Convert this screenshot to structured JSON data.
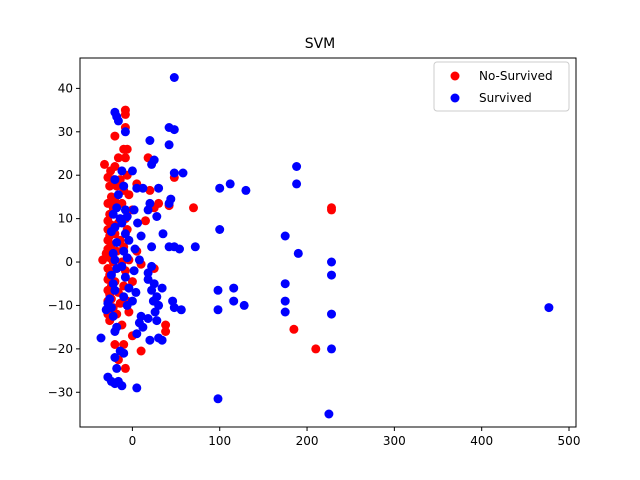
{
  "chart_data": {
    "type": "scatter",
    "title": "SVM",
    "xlabel": "",
    "ylabel": "",
    "xlim": [
      -60,
      508
    ],
    "ylim": [
      -38,
      47
    ],
    "xticks": [
      0,
      100,
      200,
      300,
      400,
      500
    ],
    "yticks": [
      -30,
      -20,
      -10,
      0,
      10,
      20,
      30,
      40
    ],
    "grid": false,
    "legend_position": "top-right",
    "series": [
      {
        "name": "No-Survived",
        "color": "#ff0000",
        "points": [
          [
            -32,
            22.5
          ],
          [
            -34,
            0.5
          ],
          [
            -30,
            2.0
          ],
          [
            -28,
            19.5
          ],
          [
            -28,
            13.5
          ],
          [
            -28,
            9.5
          ],
          [
            -28,
            7.5
          ],
          [
            -28,
            5.0
          ],
          [
            -28,
            3.0
          ],
          [
            -28,
            -1.5
          ],
          [
            -28,
            -4.0
          ],
          [
            -28,
            -6.5
          ],
          [
            -28,
            -9.0
          ],
          [
            -28,
            -12.0
          ],
          [
            -26,
            17.5
          ],
          [
            -26,
            11.0
          ],
          [
            -26,
            6.0
          ],
          [
            -26,
            1.0
          ],
          [
            -26,
            -3.0
          ],
          [
            -26,
            -7.5
          ],
          [
            -26,
            -13.5
          ],
          [
            -25,
            21.0
          ],
          [
            -24,
            15.0
          ],
          [
            -24,
            8.5
          ],
          [
            -24,
            4.0
          ],
          [
            -24,
            -2.5
          ],
          [
            -24,
            -5.5
          ],
          [
            -24,
            -8.5
          ],
          [
            -22,
            19.0
          ],
          [
            -22,
            12.5
          ],
          [
            -22,
            0.0
          ],
          [
            -22,
            -10.5
          ],
          [
            -20,
            29.0
          ],
          [
            -20,
            22.0
          ],
          [
            -20,
            14.0
          ],
          [
            -20,
            6.5
          ],
          [
            -20,
            -4.5
          ],
          [
            -20,
            -19.0
          ],
          [
            -18,
            17.5
          ],
          [
            -18,
            2.5
          ],
          [
            -18,
            -1.5
          ],
          [
            -18,
            -12.0
          ],
          [
            -16,
            24.0
          ],
          [
            -16,
            9.0
          ],
          [
            -16,
            -7.0
          ],
          [
            -16,
            -22.5
          ],
          [
            -14,
            19.0
          ],
          [
            -14,
            5.0
          ],
          [
            -14,
            -9.5
          ],
          [
            -12,
            13.5
          ],
          [
            -12,
            0.0
          ],
          [
            -12,
            -14.5
          ],
          [
            -10,
            26.0
          ],
          [
            -10,
            16.5
          ],
          [
            -10,
            3.5
          ],
          [
            -10,
            -5.5
          ],
          [
            -10,
            -19.0
          ],
          [
            -8,
            35.0
          ],
          [
            -8,
            34.0
          ],
          [
            -8,
            31.0
          ],
          [
            -8,
            24.0
          ],
          [
            -8,
            10.0
          ],
          [
            -8,
            -2.0
          ],
          [
            -8,
            -24.5
          ],
          [
            -6,
            26.0
          ],
          [
            -6,
            20.0
          ],
          [
            -6,
            7.5
          ],
          [
            -6,
            -9.0
          ],
          [
            -4,
            15.5
          ],
          [
            -4,
            0.5
          ],
          [
            -4,
            -11.5
          ],
          [
            0,
            12.0
          ],
          [
            0,
            -4.5
          ],
          [
            0,
            -17.0
          ],
          [
            5,
            18.0
          ],
          [
            5,
            2.5
          ],
          [
            10,
            -0.5
          ],
          [
            10,
            -20.5
          ],
          [
            15,
            9.5
          ],
          [
            18,
            24.0
          ],
          [
            20,
            16.5
          ],
          [
            25,
            12.5
          ],
          [
            25,
            -1.5
          ],
          [
            30,
            13.5
          ],
          [
            38,
            -14.5
          ],
          [
            38,
            -16.0
          ],
          [
            42,
            13.0
          ],
          [
            48,
            19.5
          ],
          [
            70,
            12.5
          ],
          [
            185,
            -15.5
          ],
          [
            210,
            -20.0
          ],
          [
            228,
            12.0
          ],
          [
            228,
            12.5
          ]
        ]
      },
      {
        "name": "Survived",
        "color": "#0000ff",
        "points": [
          [
            -20,
            34.5
          ],
          [
            -18,
            33.5
          ],
          [
            -16,
            32.5
          ],
          [
            -8,
            30.0
          ],
          [
            -20,
            19.0
          ],
          [
            -16,
            15.5
          ],
          [
            -18,
            12.5
          ],
          [
            -22,
            11.0
          ],
          [
            -14,
            10.0
          ],
          [
            -20,
            8.0
          ],
          [
            -24,
            7.0
          ],
          [
            -18,
            4.5
          ],
          [
            -22,
            2.0
          ],
          [
            -20,
            0.5
          ],
          [
            -18,
            -1.5
          ],
          [
            -24,
            -3.0
          ],
          [
            -22,
            -5.0
          ],
          [
            -20,
            -6.5
          ],
          [
            -26,
            -8.5
          ],
          [
            -28,
            -9.5
          ],
          [
            -24,
            -10.5
          ],
          [
            -30,
            -11.0
          ],
          [
            -22,
            -12.5
          ],
          [
            -18,
            -15.0
          ],
          [
            -20,
            -16.0
          ],
          [
            -36,
            -17.5
          ],
          [
            -14,
            -20.5
          ],
          [
            -20,
            -22.0
          ],
          [
            -10,
            -21.0
          ],
          [
            -18,
            -24.5
          ],
          [
            -28,
            -26.5
          ],
          [
            -24,
            -27.5
          ],
          [
            -20,
            -28.0
          ],
          [
            -16,
            -27.5
          ],
          [
            -12,
            -28.5
          ],
          [
            5,
            -29.0
          ],
          [
            -12,
            21.0
          ],
          [
            -10,
            17.5
          ],
          [
            -8,
            12.0
          ],
          [
            -6,
            10.5
          ],
          [
            -12,
            9.0
          ],
          [
            -8,
            6.5
          ],
          [
            -4,
            5.0
          ],
          [
            -10,
            2.5
          ],
          [
            -6,
            1.0
          ],
          [
            -12,
            -1.0
          ],
          [
            -8,
            -3.5
          ],
          [
            -4,
            -6.0
          ],
          [
            -10,
            -8.0
          ],
          [
            -6,
            -10.0
          ],
          [
            0,
            -9.0
          ],
          [
            0,
            21.0
          ],
          [
            5,
            17.0
          ],
          [
            12,
            17.0
          ],
          [
            2,
            12.0
          ],
          [
            6,
            9.0
          ],
          [
            10,
            6.0
          ],
          [
            3,
            3.0
          ],
          [
            8,
            0.5
          ],
          [
            2,
            -2.0
          ],
          [
            4,
            -7.0
          ],
          [
            10,
            -12.5
          ],
          [
            20,
            28.0
          ],
          [
            22,
            22.5
          ],
          [
            25,
            23.5
          ],
          [
            30,
            17.0
          ],
          [
            20,
            13.5
          ],
          [
            18,
            12.0
          ],
          [
            28,
            10.5
          ],
          [
            35,
            6.5
          ],
          [
            22,
            3.5
          ],
          [
            18,
            -4.0
          ],
          [
            25,
            -5.0
          ],
          [
            22,
            -6.5
          ],
          [
            34,
            -6.0
          ],
          [
            28,
            -8.0
          ],
          [
            24,
            -9.0
          ],
          [
            30,
            -10.0
          ],
          [
            26,
            -11.5
          ],
          [
            18,
            -13.0
          ],
          [
            28,
            -13.5
          ],
          [
            30,
            -17.5
          ],
          [
            34,
            -18.0
          ],
          [
            20,
            -18.0
          ],
          [
            5,
            -16.5
          ],
          [
            8,
            -14.0
          ],
          [
            12,
            -15.0
          ],
          [
            18,
            -2.5
          ],
          [
            22,
            -1.0
          ],
          [
            48,
            42.5
          ],
          [
            42,
            31.0
          ],
          [
            48,
            30.5
          ],
          [
            42,
            27.0
          ],
          [
            48,
            20.5
          ],
          [
            58,
            20.5
          ],
          [
            44,
            14.5
          ],
          [
            42,
            13.5
          ],
          [
            42,
            3.5
          ],
          [
            48,
            3.5
          ],
          [
            54,
            3.0
          ],
          [
            46,
            -9.0
          ],
          [
            48,
            -10.5
          ],
          [
            56,
            -11.0
          ],
          [
            72,
            3.5
          ],
          [
            100,
            17.0
          ],
          [
            112,
            18.0
          ],
          [
            130,
            16.5
          ],
          [
            100,
            7.5
          ],
          [
            98,
            -6.5
          ],
          [
            98,
            -11.0
          ],
          [
            116,
            -6.0
          ],
          [
            116,
            -9.0
          ],
          [
            128,
            -10.0
          ],
          [
            98,
            -31.5
          ],
          [
            175,
            6.0
          ],
          [
            190,
            2.0
          ],
          [
            175,
            -5.0
          ],
          [
            175,
            -9.0
          ],
          [
            175,
            -11.5
          ],
          [
            188,
            22.0
          ],
          [
            188,
            18.0
          ],
          [
            228,
            0.0
          ],
          [
            228,
            -3.0
          ],
          [
            228,
            -12.0
          ],
          [
            228,
            -20.0
          ],
          [
            225,
            -35.0
          ],
          [
            477,
            -10.5
          ]
        ]
      }
    ]
  }
}
